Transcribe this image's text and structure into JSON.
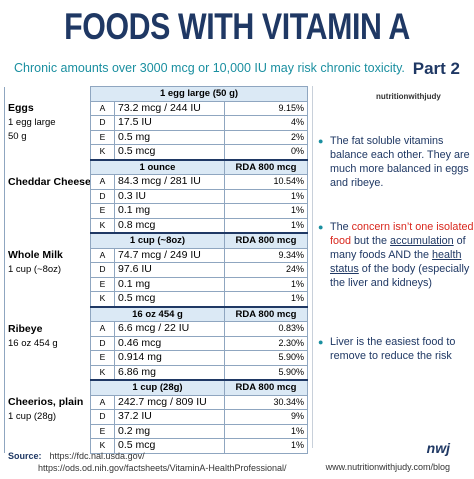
{
  "header": {
    "title": "FOODS WITH VITAMIN A",
    "subtitle": "Chronic amounts over 3000 mcg or 10,000 IU may risk chronic toxicity.",
    "part": "Part 2",
    "brand": "nutritionwithjudy"
  },
  "table": {
    "sections": [
      {
        "heading": "1 egg large (50 g)",
        "food": "Eggs",
        "serving": [
          "1 egg large",
          "50 g"
        ],
        "rows": [
          [
            "A",
            "73.2 mcg / 244 IU",
            "9.15%"
          ],
          [
            "D",
            "17.5 IU",
            "4%"
          ],
          [
            "E",
            "0.5 mg",
            "2%"
          ],
          [
            "K",
            "0.5 mcg",
            "0%"
          ]
        ]
      },
      {
        "heading": "1 ounce",
        "rda": "RDA 800 mcg",
        "food": "Cheddar Cheese",
        "rows": [
          [
            "A",
            "84.3 mcg / 281 IU",
            "10.54%"
          ],
          [
            "D",
            "0.3 IU",
            "1%"
          ],
          [
            "E",
            "0.1 mg",
            "1%"
          ],
          [
            "K",
            "0.8 mcg",
            "1%"
          ]
        ]
      },
      {
        "heading": "1 cup (~8oz)",
        "rda": "RDA 800 mcg",
        "food": "Whole Milk",
        "serving": [
          "1 cup (~8oz)"
        ],
        "rows": [
          [
            "A",
            "74.7 mcg / 249 IU",
            "9.34%"
          ],
          [
            "D",
            "97.6 IU",
            "24%"
          ],
          [
            "E",
            "0.1 mg",
            "1%"
          ],
          [
            "K",
            "0.5 mcg",
            "1%"
          ]
        ]
      },
      {
        "heading": "16 oz 454 g",
        "rda": "RDA 800 mcg",
        "food": "Ribeye",
        "serving": [
          "16 oz 454 g"
        ],
        "rows": [
          [
            "A",
            "6.6 mcg / 22 IU",
            "0.83%"
          ],
          [
            "D",
            "0.46 mcg",
            "2.30%"
          ],
          [
            "E",
            "0.914 mg",
            "5.90%"
          ],
          [
            "K",
            "6.86 mg",
            "5.90%"
          ]
        ]
      },
      {
        "heading": "1 cup (28g)",
        "rda": "RDA 800 mcg",
        "food": "Cheerios, plain",
        "serving": [
          "1 cup (28g)"
        ],
        "rows": [
          [
            "A",
            "242.7 mcg / 809 IU",
            "30.34%"
          ],
          [
            "D",
            "37.2 IU",
            "9%"
          ],
          [
            "E",
            "0.2 mg",
            "1%"
          ],
          [
            "K",
            "0.5 mcg",
            "1%"
          ]
        ]
      }
    ]
  },
  "notes": [
    {
      "segments": [
        {
          "text": "The fat soluble vitamins balance each other.  They are much more balanced in eggs and ribeye."
        }
      ]
    },
    {
      "segments": [
        {
          "text": "The "
        },
        {
          "text": "concern isn’t one isolated food",
          "emphasis": "red"
        },
        {
          "text": " but the "
        },
        {
          "text": "accumulation",
          "emphasis": "underline"
        },
        {
          "text": " of many foods AND the "
        },
        {
          "text": "health status",
          "emphasis": "underline"
        },
        {
          "text": " of the body (especially the liver and kidneys)"
        }
      ]
    },
    {
      "segments": [
        {
          "text": "Liver is the easiest food to remove to reduce the risk"
        }
      ]
    }
  ],
  "footer": {
    "source_label": "Source:",
    "sources": [
      "https://fdc.nal.usda.gov/",
      "https://ods.od.nih.gov/factsheets/VitaminA-HealthProfessional/"
    ],
    "site": "www.nutritionwithjudy.com/blog",
    "logo": "nwj"
  }
}
